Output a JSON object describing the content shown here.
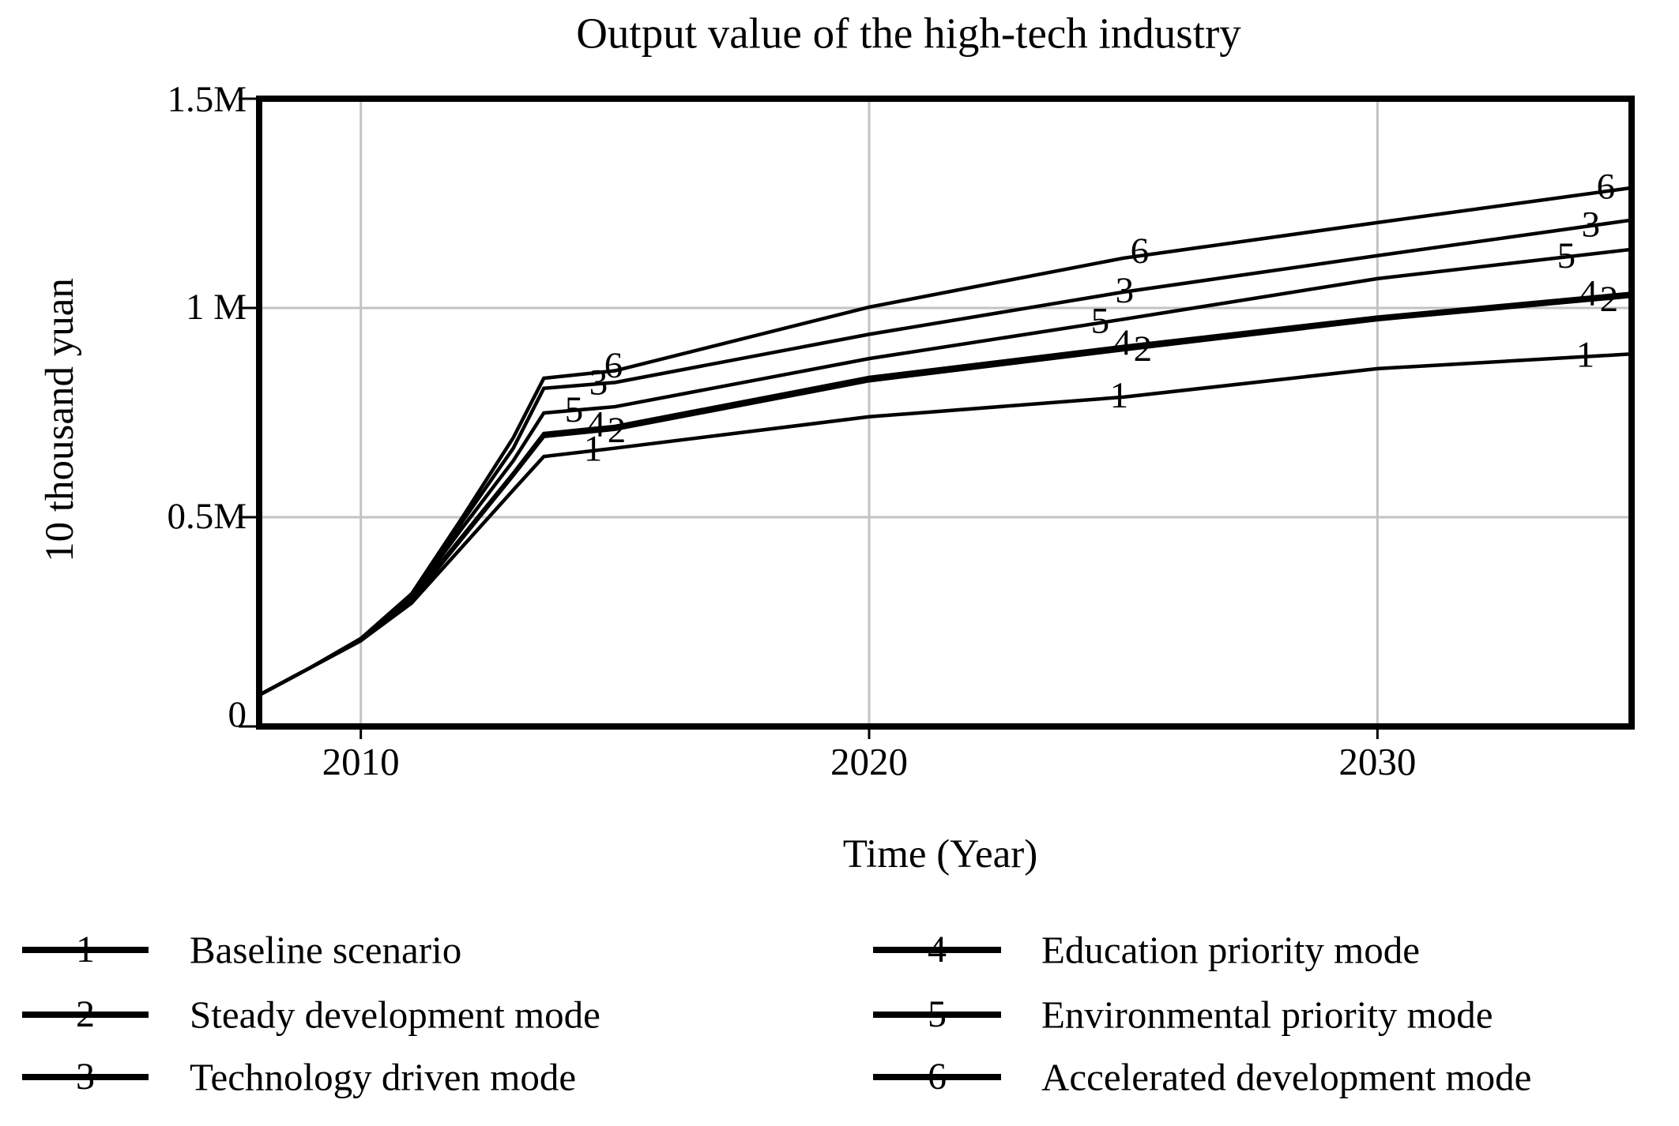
{
  "title": "Output value of the high-tech industry",
  "x_axis": {
    "label": "Time (Year)",
    "ticks": [
      {
        "label": "2010",
        "value": 2010,
        "grid": true
      },
      {
        "label": "2020",
        "value": 2020,
        "grid": true
      },
      {
        "label": "2030",
        "value": 2030,
        "grid": true
      }
    ],
    "range": [
      2008,
      2035
    ]
  },
  "y_axis": {
    "label": "10 thousand yuan",
    "ticks": [
      {
        "label": "0",
        "value": 0,
        "grid": false,
        "dy": -14
      },
      {
        "label": "0.5M",
        "value": 0.5,
        "grid": true,
        "dy": 0
      },
      {
        "label": "1 M",
        "value": 1,
        "grid": true,
        "dy": 0
      },
      {
        "label": "1.5M",
        "value": 1.5,
        "grid": false,
        "dy": 2
      }
    ],
    "range_M": [
      0,
      1.5
    ]
  },
  "colors": {
    "line": "#000000",
    "grid": "#c3c3c3",
    "background": "#ffffff",
    "text": "#000000"
  },
  "chart_data": {
    "type": "line",
    "title": "Output value of the high-tech industry",
    "xlabel": "Time (Year)",
    "ylabel": "10 thousand yuan",
    "xlim": [
      2008,
      2035
    ],
    "ylim_M": [
      0,
      1.5
    ],
    "grid": true,
    "legend_position": "bottom-two-columns",
    "unit_note": "values in millions (M) of 10-thousand-yuan",
    "curve_label_years": [
      2014.63,
      2024.98,
      2034.15
    ],
    "series": [
      {
        "number": "1",
        "name": "Baseline scenario",
        "label_offset": [
          -4,
          -2
        ],
        "points": [
          [
            2008,
            0.075
          ],
          [
            2009,
            0.14
          ],
          [
            2010,
            0.205
          ],
          [
            2011,
            0.295
          ],
          [
            2012,
            0.43
          ],
          [
            2013,
            0.565
          ],
          [
            2013.6,
            0.645
          ],
          [
            2015,
            0.665
          ],
          [
            2020,
            0.74
          ],
          [
            2025,
            0.787
          ],
          [
            2030,
            0.855
          ],
          [
            2035,
            0.89
          ]
        ]
      },
      {
        "number": "2",
        "name": "Steady development mode",
        "label_offset": [
          26,
          -1
        ],
        "points": [
          [
            2008,
            0.075
          ],
          [
            2009,
            0.14
          ],
          [
            2010,
            0.205
          ],
          [
            2011,
            0.3
          ],
          [
            2012,
            0.45
          ],
          [
            2013,
            0.6
          ],
          [
            2013.6,
            0.693
          ],
          [
            2015,
            0.71
          ],
          [
            2020,
            0.826
          ],
          [
            2025,
            0.9
          ],
          [
            2030,
            0.972
          ],
          [
            2035,
            1.028
          ]
        ]
      },
      {
        "number": "3",
        "name": "Technology driven mode",
        "label_offset": [
          3,
          -2
        ],
        "points": [
          [
            2008,
            0.075
          ],
          [
            2009,
            0.14
          ],
          [
            2010,
            0.21
          ],
          [
            2011,
            0.313
          ],
          [
            2012,
            0.49
          ],
          [
            2013,
            0.665
          ],
          [
            2013.6,
            0.808
          ],
          [
            2015,
            0.822
          ],
          [
            2020,
            0.937
          ],
          [
            2025,
            1.038
          ],
          [
            2030,
            1.125
          ],
          [
            2035,
            1.21
          ]
        ]
      },
      {
        "number": "4",
        "name": "Education priority mode",
        "label_offset": [
          0,
          -5
        ],
        "points": [
          [
            2008,
            0.075
          ],
          [
            2009,
            0.14
          ],
          [
            2010,
            0.205
          ],
          [
            2011,
            0.305
          ],
          [
            2012,
            0.455
          ],
          [
            2013,
            0.605
          ],
          [
            2013.6,
            0.7
          ],
          [
            2015,
            0.717
          ],
          [
            2020,
            0.834
          ],
          [
            2025,
            0.908
          ],
          [
            2030,
            0.978
          ],
          [
            2035,
            1.035
          ]
        ]
      },
      {
        "number": "5",
        "name": "Environmental priority mode",
        "label_offset": [
          -28,
          2
        ],
        "points": [
          [
            2008,
            0.075
          ],
          [
            2009,
            0.14
          ],
          [
            2010,
            0.208
          ],
          [
            2011,
            0.31
          ],
          [
            2012,
            0.475
          ],
          [
            2013,
            0.635
          ],
          [
            2013.6,
            0.749
          ],
          [
            2015,
            0.764
          ],
          [
            2020,
            0.879
          ],
          [
            2025,
            0.973
          ],
          [
            2030,
            1.07
          ],
          [
            2035,
            1.14
          ]
        ]
      },
      {
        "number": "6",
        "name": "Accelerated development mode",
        "label_offset": [
          22,
          -9
        ],
        "points": [
          [
            2008,
            0.075
          ],
          [
            2009,
            0.14
          ],
          [
            2010,
            0.21
          ],
          [
            2011,
            0.317
          ],
          [
            2012,
            0.5
          ],
          [
            2013,
            0.69
          ],
          [
            2013.6,
            0.832
          ],
          [
            2015,
            0.85
          ],
          [
            2020,
            1.002
          ],
          [
            2025,
            1.119
          ],
          [
            2030,
            1.204
          ],
          [
            2035,
            1.287
          ]
        ]
      }
    ]
  },
  "legend": {
    "columns": [
      [
        {
          "number": "1",
          "label": "Baseline scenario"
        },
        {
          "number": "2",
          "label": "Steady development mode"
        },
        {
          "number": "3",
          "label": "Technology driven mode"
        }
      ],
      [
        {
          "number": "4",
          "label": "Education priority mode"
        },
        {
          "number": "5",
          "label": "Environmental priority mode"
        },
        {
          "number": "6",
          "label": "Accelerated development mode"
        }
      ]
    ]
  }
}
